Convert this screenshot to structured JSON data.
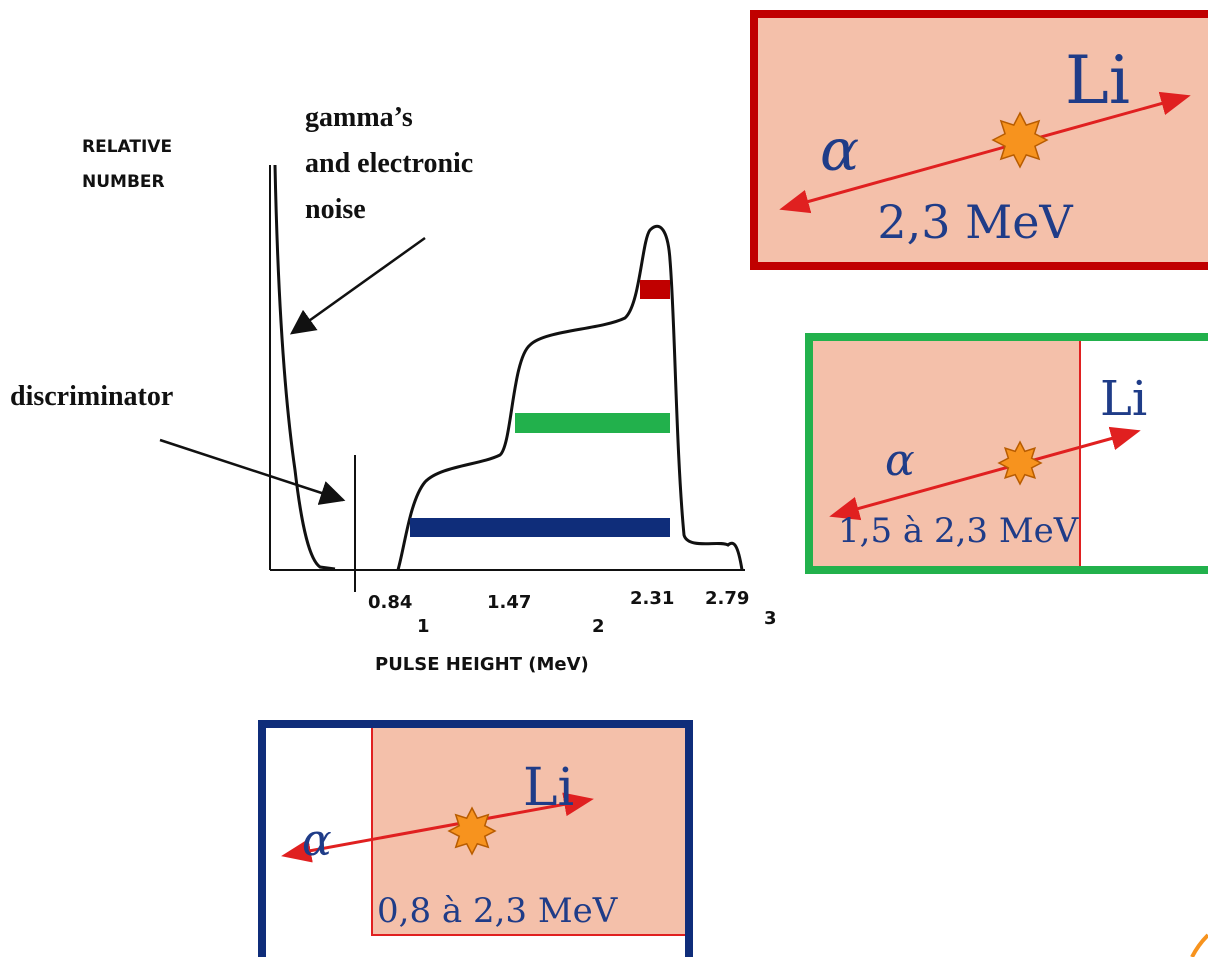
{
  "spectrum": {
    "y_axis_label": [
      "RELATIVE",
      "NUMBER"
    ],
    "annotation_gamma": [
      "gamma’s",
      "and electronic",
      "noise"
    ],
    "annotation_discriminator": "discriminator",
    "peak_labels": [
      "0.84",
      "1.47",
      "2.31",
      "2.79"
    ],
    "axis_ticks": [
      "1",
      "2",
      "3"
    ],
    "x_axis_label": "PULSE HEIGHT (MeV)"
  },
  "boxes": [
    {
      "li": "Li",
      "alpha": "α",
      "energy": "2,3 MeV"
    },
    {
      "li": "Li",
      "alpha": "α",
      "energy": "1,5 à 2,3 MeV"
    },
    {
      "li": "Li",
      "alpha": "α",
      "energy": "0,8 à 2,3 MeV"
    }
  ]
}
